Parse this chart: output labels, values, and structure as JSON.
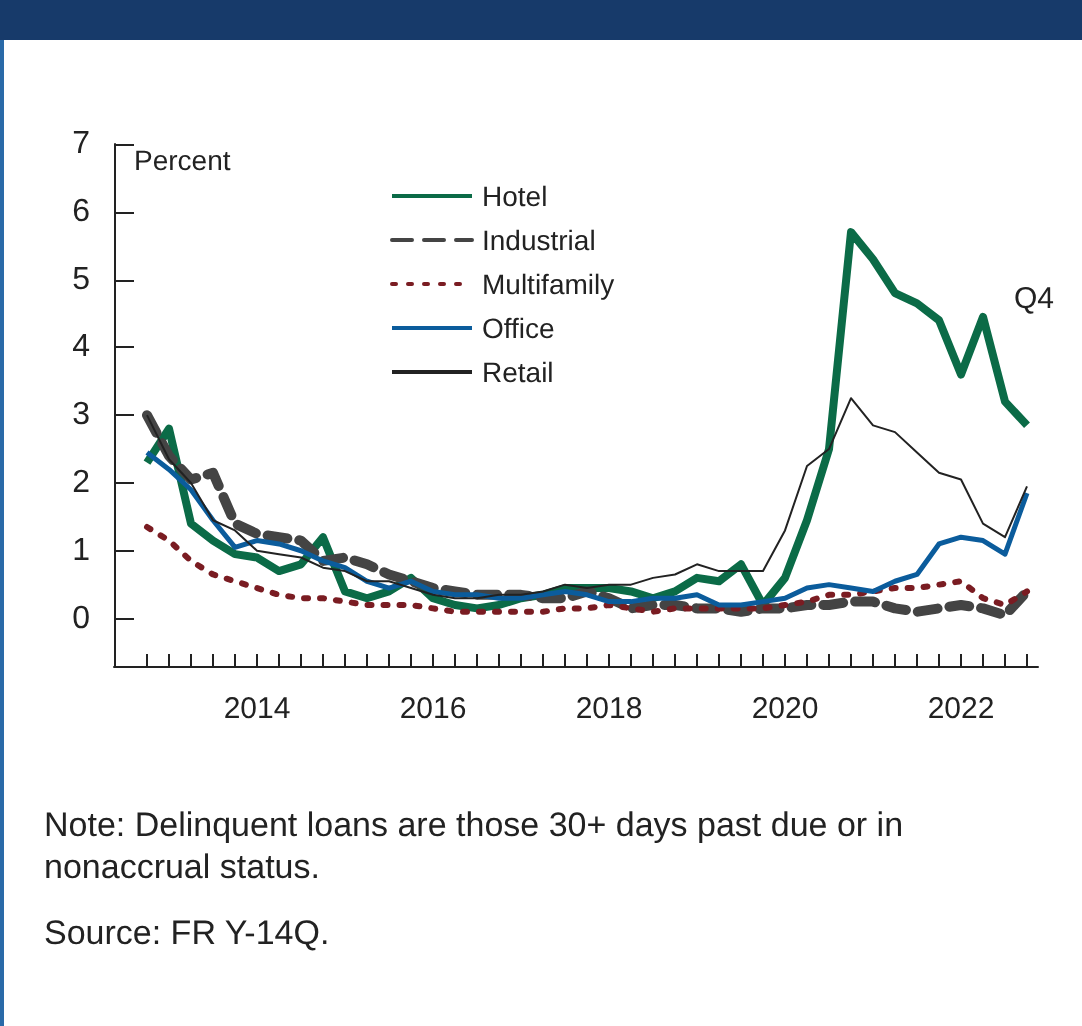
{
  "chart_data": {
    "type": "line",
    "ylabel": "Percent",
    "x": [
      2012.75,
      2013,
      2013.25,
      2013.5,
      2013.75,
      2014,
      2014.25,
      2014.5,
      2014.75,
      2015,
      2015.25,
      2015.5,
      2015.75,
      2016,
      2016.25,
      2016.5,
      2016.75,
      2017,
      2017.25,
      2017.5,
      2017.75,
      2018,
      2018.25,
      2018.5,
      2018.75,
      2019,
      2019.25,
      2019.5,
      2019.75,
      2020,
      2020.25,
      2020.5,
      2020.75,
      2021,
      2021.25,
      2021.5,
      2021.75,
      2022,
      2022.25,
      2022.5,
      2022.75
    ],
    "series": [
      {
        "name": "Hotel",
        "color": "#0b6b47",
        "values": [
          2.3,
          2.8,
          1.4,
          1.15,
          0.95,
          0.9,
          0.7,
          0.8,
          1.2,
          0.4,
          0.3,
          0.4,
          0.6,
          0.3,
          0.2,
          0.15,
          0.2,
          0.3,
          0.35,
          0.45,
          0.45,
          0.45,
          0.4,
          0.3,
          0.4,
          0.6,
          0.55,
          0.8,
          0.2,
          0.6,
          1.45,
          2.5,
          5.7,
          5.3,
          4.8,
          4.65,
          4.4,
          3.6,
          4.45,
          3.2,
          2.85
        ]
      },
      {
        "name": "Industrial",
        "color": "#444444",
        "line_style": "dashed",
        "values": [
          3.0,
          2.4,
          2.05,
          2.15,
          1.4,
          1.25,
          1.2,
          1.15,
          0.85,
          0.9,
          0.8,
          0.65,
          0.55,
          0.45,
          0.4,
          0.35,
          0.35,
          0.35,
          0.3,
          0.3,
          0.4,
          0.3,
          0.15,
          0.2,
          0.2,
          0.15,
          0.15,
          0.1,
          0.15,
          0.15,
          0.2,
          0.2,
          0.25,
          0.25,
          0.15,
          0.1,
          0.15,
          0.2,
          0.15,
          0.05,
          0.4
        ]
      },
      {
        "name": "Multifamily",
        "color": "#7a1c22",
        "line_style": "dotted",
        "values": [
          1.35,
          1.15,
          0.85,
          0.65,
          0.55,
          0.45,
          0.35,
          0.3,
          0.3,
          0.25,
          0.2,
          0.2,
          0.2,
          0.15,
          0.1,
          0.1,
          0.1,
          0.1,
          0.1,
          0.15,
          0.15,
          0.2,
          0.15,
          0.1,
          0.15,
          0.15,
          0.15,
          0.15,
          0.15,
          0.2,
          0.25,
          0.35,
          0.35,
          0.4,
          0.45,
          0.45,
          0.5,
          0.55,
          0.3,
          0.2,
          0.4
        ]
      },
      {
        "name": "Office",
        "color": "#0b5c9c",
        "values": [
          2.45,
          2.2,
          1.9,
          1.45,
          1.05,
          1.15,
          1.1,
          1.0,
          0.85,
          0.75,
          0.55,
          0.45,
          0.55,
          0.4,
          0.35,
          0.35,
          0.3,
          0.3,
          0.35,
          0.4,
          0.35,
          0.25,
          0.25,
          0.3,
          0.3,
          0.35,
          0.2,
          0.2,
          0.25,
          0.3,
          0.45,
          0.5,
          0.45,
          0.4,
          0.55,
          0.65,
          1.1,
          1.2,
          1.15,
          0.95,
          1.85
        ]
      },
      {
        "name": "Retail",
        "color": "#222222",
        "values": [
          3.0,
          2.35,
          2.0,
          1.45,
          1.3,
          1.0,
          0.95,
          0.9,
          0.75,
          0.7,
          0.55,
          0.55,
          0.45,
          0.35,
          0.3,
          0.3,
          0.35,
          0.35,
          0.4,
          0.5,
          0.45,
          0.5,
          0.5,
          0.6,
          0.65,
          0.8,
          0.7,
          0.7,
          0.7,
          1.3,
          2.25,
          2.5,
          3.25,
          2.85,
          2.75,
          2.45,
          2.15,
          2.05,
          1.4,
          1.2,
          1.95
        ]
      }
    ],
    "xlim": [
      2012.375,
      2022.875
    ],
    "xticks": [
      {
        "value": 2012.75,
        "label": null
      },
      {
        "value": 2013,
        "label": null
      },
      {
        "value": 2013.25,
        "label": null
      },
      {
        "value": 2013.5,
        "label": null
      },
      {
        "value": 2013.75,
        "label": null
      },
      {
        "value": 2014,
        "label": "2014"
      },
      {
        "value": 2014.25,
        "label": null
      },
      {
        "value": 2014.5,
        "label": null
      },
      {
        "value": 2014.75,
        "label": null
      },
      {
        "value": 2015,
        "label": null
      },
      {
        "value": 2015.25,
        "label": null
      },
      {
        "value": 2015.5,
        "label": null
      },
      {
        "value": 2015.75,
        "label": null
      },
      {
        "value": 2016,
        "label": "2016"
      },
      {
        "value": 2016.25,
        "label": null
      },
      {
        "value": 2016.5,
        "label": null
      },
      {
        "value": 2016.75,
        "label": null
      },
      {
        "value": 2017,
        "label": null
      },
      {
        "value": 2017.25,
        "label": null
      },
      {
        "value": 2017.5,
        "label": null
      },
      {
        "value": 2017.75,
        "label": null
      },
      {
        "value": 2018,
        "label": "2018"
      },
      {
        "value": 2018.25,
        "label": null
      },
      {
        "value": 2018.5,
        "label": null
      },
      {
        "value": 2018.75,
        "label": null
      },
      {
        "value": 2019,
        "label": null
      },
      {
        "value": 2019.25,
        "label": null
      },
      {
        "value": 2019.5,
        "label": null
      },
      {
        "value": 2019.75,
        "label": null
      },
      {
        "value": 2020,
        "label": "2020"
      },
      {
        "value": 2020.25,
        "label": null
      },
      {
        "value": 2020.5,
        "label": null
      },
      {
        "value": 2020.75,
        "label": null
      },
      {
        "value": 2021,
        "label": null
      },
      {
        "value": 2021.25,
        "label": null
      },
      {
        "value": 2021.5,
        "label": null
      },
      {
        "value": 2021.75,
        "label": null
      },
      {
        "value": 2022,
        "label": "2022"
      },
      {
        "value": 2022.25,
        "label": null
      },
      {
        "value": 2022.5,
        "label": null
      },
      {
        "value": 2022.75,
        "label": null
      }
    ],
    "ylim": [
      -0.7,
      7
    ],
    "yticks": [
      0,
      1,
      2,
      3,
      4,
      5,
      6,
      7
    ],
    "legend": "top",
    "annotations": [
      "Q4",
      "Note: Delinquent loans are those 30+ days past due or in nonaccrual status.",
      "Source: FR Y-14Q."
    ]
  }
}
